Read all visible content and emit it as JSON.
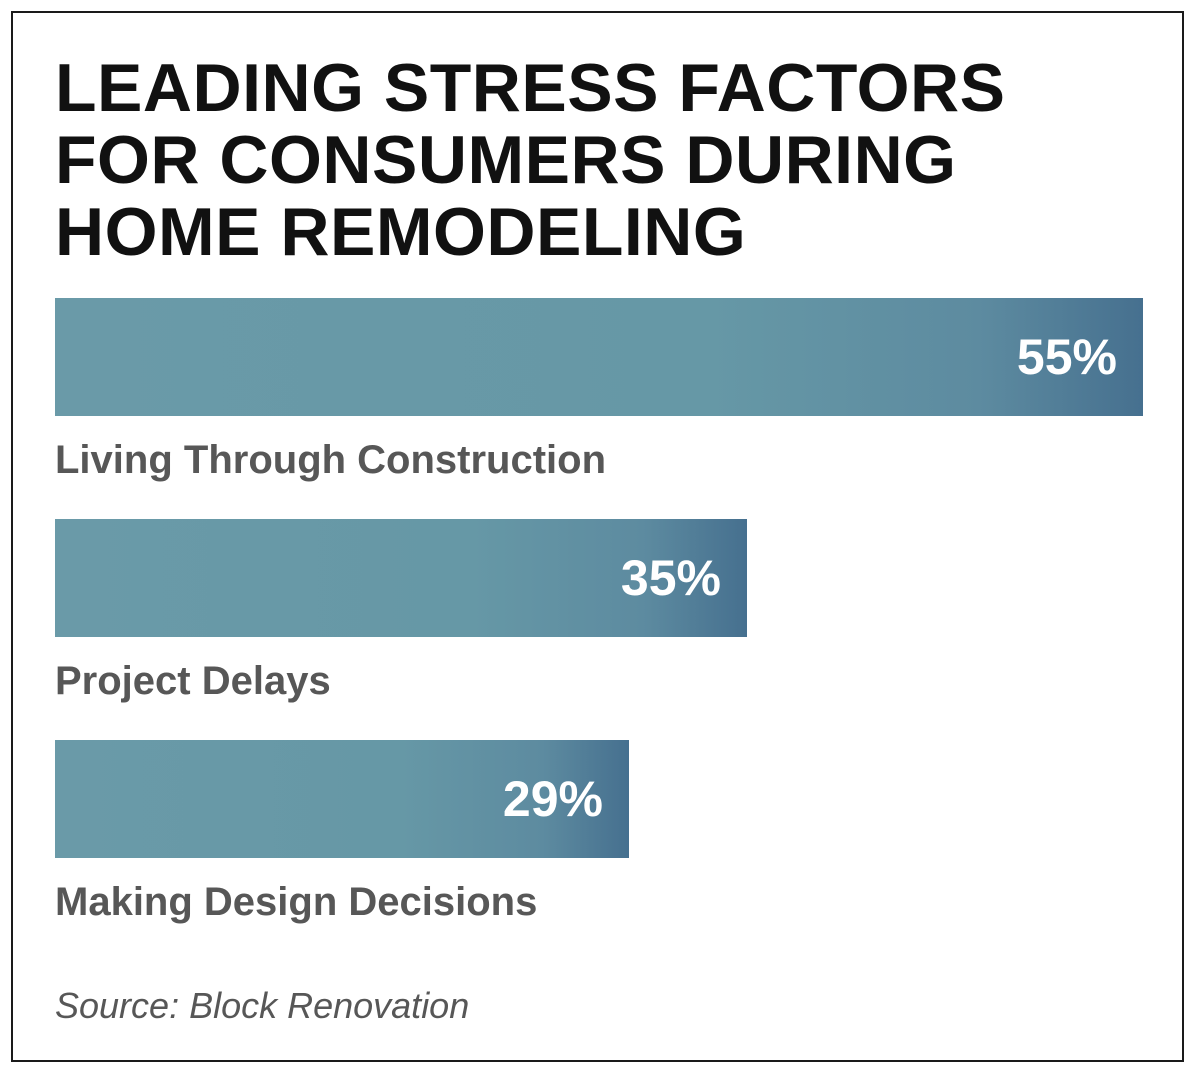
{
  "chart_data": {
    "type": "bar",
    "orientation": "horizontal",
    "title": "LEADING STRESS FACTORS\nFOR CONSUMERS DURING\nHOME REMODELING",
    "categories": [
      "Living Through Construction",
      "Project Delays",
      "Making Design Decisions"
    ],
    "values": [
      55,
      35,
      29
    ],
    "value_labels": [
      "55%",
      "35%",
      "29%"
    ],
    "xlim": [
      0,
      55
    ],
    "grid": false,
    "legend": "none",
    "bar_color": "#6698a6",
    "bar_color_end": "#46708f",
    "source": "Source: Block Renovation"
  }
}
